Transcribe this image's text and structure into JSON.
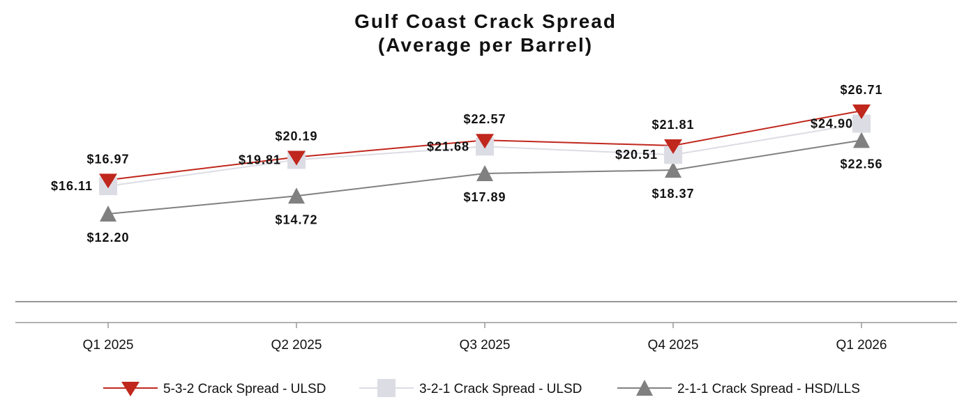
{
  "chart_data": {
    "type": "line",
    "title": "Gulf Coast Crack Spread",
    "subtitle": "(Average per Barrel)",
    "categories": [
      "Q1 2025",
      "Q2 2025",
      "Q3 2025",
      "Q4 2025",
      "Q1 2026"
    ],
    "series": [
      {
        "name": "5-3-2 Crack Spread - ULSD",
        "values": [
          16.97,
          20.19,
          22.57,
          21.81,
          26.71
        ],
        "labels": [
          "$16.97",
          "$20.19",
          "$22.57",
          "$21.81",
          "$26.71"
        ],
        "color": "#c0271d",
        "marker": "triangle-down"
      },
      {
        "name": "3-2-1 Crack Spread - ULSD",
        "values": [
          16.11,
          19.81,
          21.68,
          20.51,
          24.9
        ],
        "labels": [
          "$16.11",
          "$19.81",
          "$21.68",
          "$20.51",
          "$24.90"
        ],
        "color": "#dcdce4",
        "marker": "square"
      },
      {
        "name": "2-1-1 Crack Spread - HSD/LLS",
        "values": [
          12.2,
          14.72,
          17.89,
          18.37,
          22.56
        ],
        "labels": [
          "$12.20",
          "$14.72",
          "$17.89",
          "$18.37",
          "$22.56"
        ],
        "color": "#808080",
        "marker": "triangle-up"
      }
    ],
    "grid": false,
    "legend_position": "bottom"
  }
}
